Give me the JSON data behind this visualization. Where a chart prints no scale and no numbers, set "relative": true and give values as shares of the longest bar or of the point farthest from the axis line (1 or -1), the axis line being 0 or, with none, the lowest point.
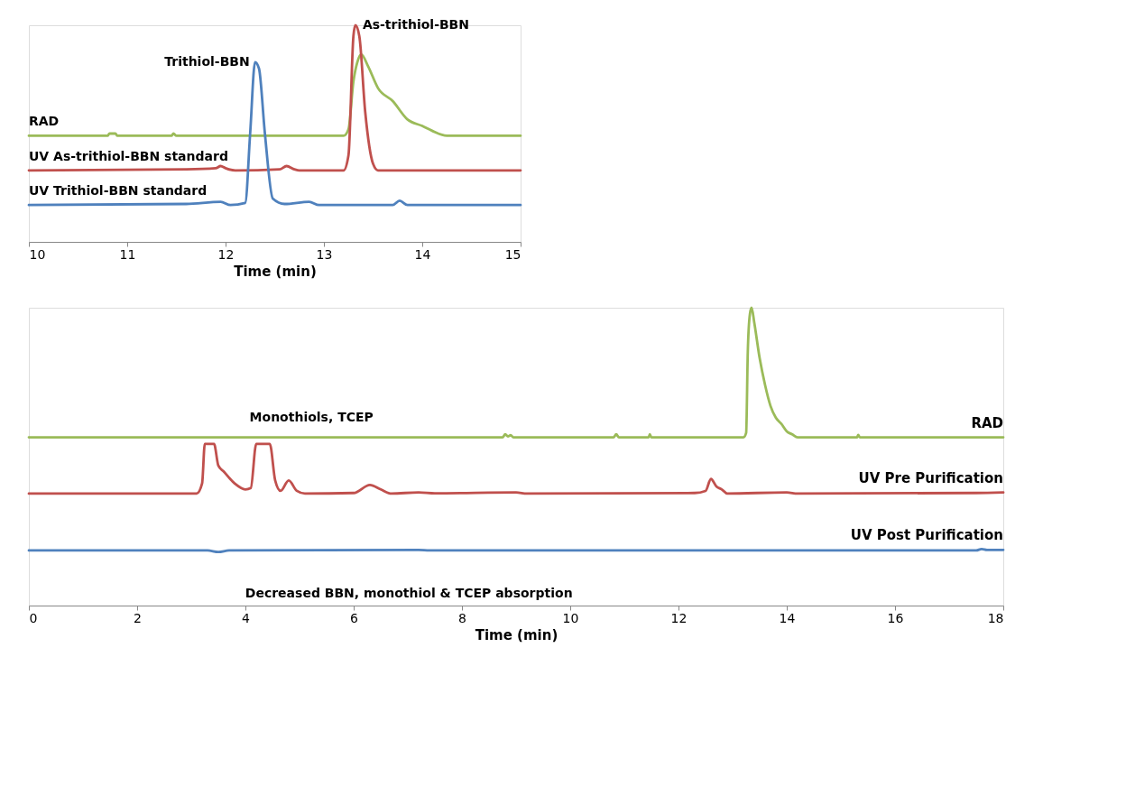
{
  "chart_data": [
    {
      "type": "line",
      "relative": true,
      "xlabel": "Time (min)",
      "xlim": [
        10,
        15
      ],
      "xticks": [
        {
          "value": 10,
          "label": "10"
        },
        {
          "value": 11,
          "label": "11"
        },
        {
          "value": 12,
          "label": "12"
        },
        {
          "value": 13,
          "label": "13"
        },
        {
          "value": 14,
          "label": "14"
        },
        {
          "value": 15,
          "label": "15"
        }
      ],
      "grid": false,
      "legend": false,
      "marker": "none",
      "line_style": "solid",
      "annotations": [
        {
          "text": "Trithiol-BBN",
          "x": 12.3,
          "y": 0.83
        },
        {
          "text": "As-trithiol-BBN",
          "x": 13.32,
          "y": 1.0
        }
      ],
      "series": [
        {
          "name": "RAD",
          "color": "#9bbb59",
          "x": [
            10,
            10.8,
            10.82,
            10.88,
            10.9,
            11.45,
            11.47,
            11.5,
            13.2,
            13.25,
            13.3,
            13.34,
            13.38,
            13.45,
            13.55,
            13.7,
            13.85,
            14.0,
            14.1,
            14.25,
            15
          ],
          "values": [
            0.49,
            0.49,
            0.5,
            0.5,
            0.49,
            0.49,
            0.5,
            0.49,
            0.49,
            0.52,
            0.74,
            0.83,
            0.865,
            0.81,
            0.71,
            0.65,
            0.565,
            0.535,
            0.513,
            0.49,
            0.49
          ]
        },
        {
          "name": "UV As-trithiol-BBN standard",
          "color": "#c0504d",
          "x": [
            10,
            11.6,
            11.9,
            11.95,
            12.0,
            12.1,
            12.55,
            12.62,
            12.7,
            12.75,
            13.2,
            13.25,
            13.3,
            13.32,
            13.36,
            13.42,
            13.5,
            13.55,
            15
          ],
          "values": [
            0.33,
            0.335,
            0.34,
            0.35,
            0.34,
            0.33,
            0.335,
            0.35,
            0.335,
            0.33,
            0.33,
            0.4,
            0.95,
            1.0,
            0.95,
            0.6,
            0.36,
            0.33,
            0.33
          ]
        },
        {
          "name": "UV Trithiol-BBN standard",
          "color": "#4f81bd",
          "x": [
            10,
            11.6,
            11.95,
            12.05,
            12.2,
            12.25,
            12.3,
            12.34,
            12.4,
            12.48,
            12.6,
            12.85,
            12.95,
            13.7,
            13.77,
            13.85,
            15
          ],
          "values": [
            0.17,
            0.175,
            0.185,
            0.17,
            0.18,
            0.5,
            0.83,
            0.8,
            0.5,
            0.2,
            0.175,
            0.185,
            0.17,
            0.17,
            0.19,
            0.17,
            0.17
          ]
        }
      ]
    },
    {
      "type": "line",
      "relative": true,
      "xlabel": "Time (min)",
      "xlim": [
        0,
        18
      ],
      "xticks": [
        {
          "value": 0,
          "label": "0"
        },
        {
          "value": 2,
          "label": "2"
        },
        {
          "value": 4,
          "label": "4"
        },
        {
          "value": 6,
          "label": "6"
        },
        {
          "value": 8,
          "label": "8"
        },
        {
          "value": 10,
          "label": "10"
        },
        {
          "value": 12,
          "label": "12"
        },
        {
          "value": 14,
          "label": "14"
        },
        {
          "value": 16,
          "label": "16"
        },
        {
          "value": 18,
          "label": "18"
        }
      ],
      "grid": false,
      "legend": false,
      "marker": "none",
      "line_style": "solid",
      "annotations": [
        "Monothiols, TCEP",
        "Decreased BBN, monothiol & TCEP absorption"
      ],
      "series": [
        {
          "name": "RAD",
          "color": "#9bbb59",
          "x": [
            0,
            8.75,
            8.8,
            8.85,
            8.9,
            8.95,
            10.8,
            10.85,
            10.9,
            11.45,
            11.47,
            11.5,
            13.2,
            13.25,
            13.28,
            13.32,
            13.35,
            13.4,
            13.5,
            13.6,
            13.7,
            13.8,
            13.9,
            14.0,
            14.1,
            14.2,
            15.3,
            15.32,
            15.35,
            18
          ],
          "values": [
            0.565,
            0.565,
            0.575,
            0.568,
            0.572,
            0.565,
            0.565,
            0.575,
            0.565,
            0.565,
            0.575,
            0.565,
            0.565,
            0.58,
            0.85,
            0.98,
            1.0,
            0.95,
            0.83,
            0.74,
            0.67,
            0.63,
            0.61,
            0.585,
            0.575,
            0.565,
            0.565,
            0.573,
            0.565,
            0.565
          ]
        },
        {
          "name": "UV Pre Purification",
          "color": "#c0504d",
          "x": [
            0,
            3.1,
            3.2,
            3.25,
            3.42,
            3.5,
            3.6,
            3.8,
            4.0,
            4.1,
            4.2,
            4.45,
            4.55,
            4.65,
            4.8,
            4.95,
            5.1,
            6.0,
            6.3,
            6.5,
            6.7,
            7.2,
            7.5,
            9.0,
            9.2,
            12.3,
            12.5,
            12.6,
            12.7,
            12.8,
            12.9,
            14.0,
            14.2,
            17.5,
            18
          ],
          "values": [
            0.376,
            0.376,
            0.41,
            0.543,
            0.543,
            0.47,
            0.45,
            0.41,
            0.39,
            0.395,
            0.543,
            0.543,
            0.42,
            0.385,
            0.42,
            0.385,
            0.376,
            0.378,
            0.405,
            0.39,
            0.376,
            0.38,
            0.377,
            0.38,
            0.376,
            0.378,
            0.385,
            0.425,
            0.4,
            0.39,
            0.376,
            0.38,
            0.376,
            0.378,
            0.38
          ]
        },
        {
          "name": "UV Post Purification",
          "color": "#4f81bd",
          "x": [
            0,
            3.3,
            3.5,
            3.7,
            7.2,
            7.4,
            17.5,
            17.6,
            17.7,
            18
          ],
          "values": [
            0.185,
            0.185,
            0.18,
            0.185,
            0.187,
            0.185,
            0.185,
            0.19,
            0.187,
            0.187
          ]
        }
      ]
    }
  ]
}
